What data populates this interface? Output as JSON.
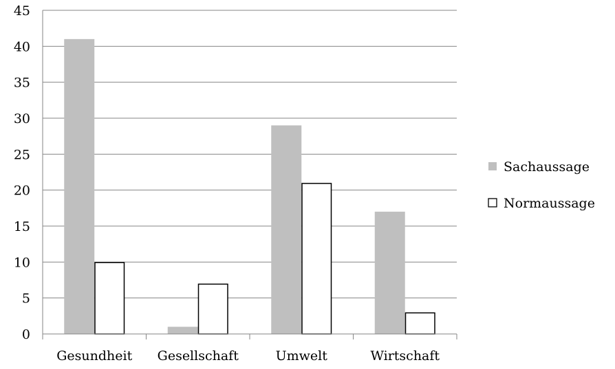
{
  "chart_data": {
    "type": "bar",
    "categories": [
      "Gesundheit",
      "Gesellschaft",
      "Umwelt",
      "Wirtschaft"
    ],
    "series": [
      {
        "name": "Sachaussage",
        "values": [
          41,
          1,
          29,
          17
        ],
        "fill": "#bfbfbf",
        "stroke": "none"
      },
      {
        "name": "Normaussage",
        "values": [
          10,
          7,
          21,
          3
        ],
        "fill": "#ffffff",
        "stroke": "#000000"
      }
    ],
    "title": "",
    "xlabel": "",
    "ylabel": "",
    "ylim": [
      0,
      45
    ],
    "yticks": [
      0,
      5,
      10,
      15,
      20,
      25,
      30,
      35,
      40,
      45
    ],
    "grid": true,
    "legend_position": "right"
  }
}
